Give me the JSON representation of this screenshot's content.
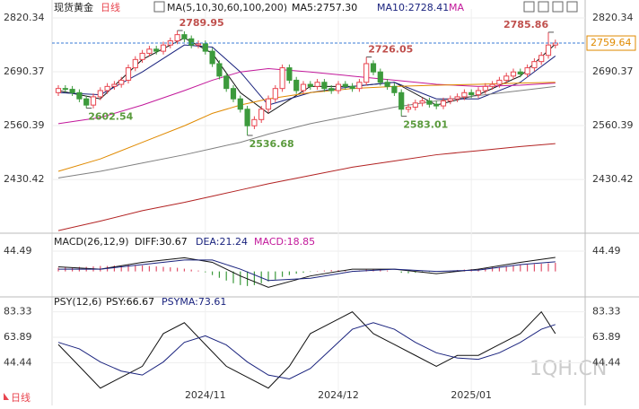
{
  "page": {
    "watermark": "1QH.CN"
  },
  "chart_data": [
    {
      "type": "candlestick",
      "title": "现货黄金",
      "period": "日线",
      "indicator": "MA(5,10,30,60,100,200)",
      "up_color": "#e8454f",
      "down_color": "#3c9a3c",
      "open": [
        2640,
        2650,
        2648,
        2640,
        2625,
        2610,
        2630,
        2645,
        2655,
        2660,
        2670,
        2700,
        2720,
        2735,
        2745,
        2740,
        2755,
        2765,
        2780,
        2770,
        2755,
        2758,
        2740,
        2710,
        2680,
        2650,
        2625,
        2600,
        2560,
        2575,
        2600,
        2625,
        2650,
        2700,
        2670,
        2645,
        2660,
        2655,
        2665,
        2650,
        2645,
        2660,
        2655,
        2650,
        2665,
        2710,
        2690,
        2665,
        2655,
        2640,
        2600,
        2605,
        2615,
        2620,
        2612,
        2608,
        2620,
        2625,
        2630,
        2640,
        2635,
        2645,
        2655,
        2660,
        2670,
        2680,
        2690,
        2685,
        2700,
        2715,
        2730,
        2755
      ],
      "high": [
        2658,
        2658,
        2656,
        2648,
        2633,
        2638,
        2653,
        2663,
        2668,
        2678,
        2708,
        2728,
        2743,
        2753,
        2753,
        2763,
        2773,
        2789.95,
        2788,
        2778,
        2766,
        2766,
        2748,
        2718,
        2688,
        2658,
        2633,
        2608,
        2583,
        2608,
        2633,
        2658,
        2708,
        2708,
        2678,
        2668,
        2668,
        2673,
        2673,
        2658,
        2668,
        2668,
        2663,
        2673,
        2726.05,
        2718,
        2698,
        2673,
        2663,
        2648,
        2613,
        2623,
        2628,
        2628,
        2620,
        2628,
        2633,
        2638,
        2648,
        2648,
        2653,
        2663,
        2668,
        2678,
        2688,
        2698,
        2698,
        2708,
        2723,
        2738,
        2785.86,
        2768
      ],
      "low": [
        2632,
        2640,
        2632,
        2617,
        2602.54,
        2602,
        2622,
        2637,
        2647,
        2652,
        2662,
        2692,
        2712,
        2727,
        2732,
        2732,
        2747,
        2757,
        2762,
        2747,
        2747,
        2732,
        2702,
        2672,
        2642,
        2617,
        2592,
        2536.68,
        2552,
        2567,
        2592,
        2617,
        2642,
        2662,
        2637,
        2637,
        2647,
        2647,
        2642,
        2637,
        2637,
        2647,
        2642,
        2642,
        2657,
        2682,
        2657,
        2647,
        2632,
        2583.01,
        2592,
        2597,
        2607,
        2604,
        2600,
        2600,
        2612,
        2617,
        2622,
        2627,
        2627,
        2637,
        2647,
        2652,
        2662,
        2672,
        2677,
        2677,
        2692,
        2707,
        2722,
        2747
      ],
      "close": [
        2650,
        2648,
        2640,
        2625,
        2610,
        2630,
        2645,
        2655,
        2660,
        2670,
        2700,
        2720,
        2735,
        2745,
        2740,
        2755,
        2765,
        2780,
        2770,
        2755,
        2758,
        2740,
        2710,
        2680,
        2650,
        2625,
        2600,
        2560,
        2575,
        2600,
        2625,
        2650,
        2700,
        2670,
        2645,
        2660,
        2655,
        2665,
        2650,
        2645,
        2660,
        2655,
        2650,
        2665,
        2710,
        2690,
        2665,
        2655,
        2640,
        2600,
        2605,
        2615,
        2620,
        2612,
        2608,
        2620,
        2625,
        2630,
        2640,
        2635,
        2645,
        2655,
        2660,
        2670,
        2680,
        2690,
        2685,
        2700,
        2715,
        2730,
        2755,
        2759.64
      ],
      "annotations": [
        {
          "x": 17,
          "y": 2789.95
        },
        {
          "x": 4,
          "y": 2602.54
        },
        {
          "x": 27,
          "y": 2536.68
        },
        {
          "x": 44,
          "y": 2726.05
        },
        {
          "x": 49,
          "y": 2583.01
        },
        {
          "x": 70,
          "y": 2785.86
        }
      ],
      "series": [
        {
          "name": "MA5:2757.30",
          "color": "#111111",
          "x": [
            0,
            6,
            12,
            18,
            22,
            26,
            30,
            36,
            42,
            48,
            54,
            60,
            66,
            71
          ],
          "values": [
            2645,
            2625,
            2720,
            2772,
            2735,
            2640,
            2590,
            2655,
            2655,
            2665,
            2610,
            2635,
            2680,
            2757.3
          ]
        },
        {
          "name": "MA10:2728.41",
          "color": "#1a237e",
          "x": [
            0,
            6,
            12,
            18,
            22,
            26,
            30,
            36,
            42,
            48,
            54,
            60,
            66,
            71
          ],
          "values": [
            2640,
            2635,
            2690,
            2755,
            2750,
            2690,
            2610,
            2640,
            2655,
            2665,
            2625,
            2625,
            2665,
            2728.41
          ]
        },
        {
          "name": "MA",
          "color": "#c2189a",
          "x": [
            0,
            6,
            12,
            18,
            22,
            26,
            30,
            36,
            42,
            48,
            54,
            60,
            66,
            71
          ],
          "values": [
            2565,
            2580,
            2610,
            2645,
            2670,
            2690,
            2698,
            2690,
            2680,
            2670,
            2660,
            2655,
            2658,
            2663
          ]
        },
        {
          "color": "#e08a00",
          "x": [
            0,
            6,
            12,
            18,
            22,
            26,
            30,
            36,
            42,
            48,
            54,
            60,
            66,
            71
          ],
          "values": [
            2450,
            2480,
            2520,
            2560,
            2590,
            2610,
            2625,
            2640,
            2650,
            2655,
            2658,
            2660,
            2663,
            2665
          ]
        },
        {
          "color": "#808080",
          "x": [
            0,
            6,
            12,
            18,
            22,
            26,
            30,
            36,
            42,
            48,
            54,
            60,
            66,
            71
          ],
          "values": [
            2434,
            2450,
            2470,
            2490,
            2505,
            2520,
            2540,
            2565,
            2585,
            2605,
            2620,
            2633,
            2645,
            2655
          ]
        },
        {
          "color": "#b22222",
          "x": [
            0,
            6,
            12,
            18,
            22,
            26,
            30,
            36,
            42,
            48,
            54,
            60,
            66,
            71
          ],
          "values": [
            2307,
            2330,
            2355,
            2375,
            2390,
            2405,
            2420,
            2440,
            2460,
            2475,
            2490,
            2500,
            2510,
            2517
          ]
        }
      ],
      "ylim": [
        2305,
        2842
      ],
      "yticks": [
        2820.34,
        2690.37,
        2560.39,
        2430.42
      ],
      "xticks": [
        {
          "value": 21,
          "label": "2024/11"
        },
        {
          "value": 40,
          "label": "2024/12"
        },
        {
          "value": 59,
          "label": "2025/01"
        }
      ]
    },
    {
      "type": "macd",
      "title": "MACD(26,12,9)",
      "histogram": {
        "name": "MACD:18.85",
        "up_color": "#e0506a",
        "down_color": "#3c9a3c",
        "values": [
          8,
          9,
          9,
          10,
          10,
          11,
          12,
          12,
          13,
          13,
          14,
          14,
          13,
          12,
          11,
          10,
          9,
          8,
          6,
          4,
          2,
          -2,
          -8,
          -14,
          -20,
          -26,
          -30,
          -32,
          -30,
          -26,
          -22,
          -18,
          -12,
          -8,
          -5,
          -3,
          -1,
          1,
          2,
          3,
          3,
          2,
          1,
          2,
          4,
          5,
          4,
          2,
          0,
          -3,
          -4,
          -3,
          -2,
          -1,
          0,
          1,
          2,
          3,
          4,
          5,
          6,
          8,
          9,
          10,
          11,
          12,
          14,
          15,
          16,
          17,
          18,
          18.85
        ]
      },
      "series": [
        {
          "name": "DIFF:30.67",
          "color": "#111111",
          "x": [
            0,
            6,
            12,
            18,
            22,
            26,
            30,
            36,
            42,
            48,
            54,
            60,
            66,
            71
          ],
          "values": [
            10,
            5,
            20,
            30,
            20,
            -10,
            -35,
            -10,
            5,
            5,
            -5,
            5,
            20,
            30.67
          ]
        },
        {
          "name": "DEA:21.24",
          "color": "#1a237e",
          "x": [
            0,
            6,
            12,
            18,
            22,
            26,
            30,
            36,
            42,
            48,
            54,
            60,
            66,
            71
          ],
          "values": [
            5,
            5,
            15,
            25,
            25,
            5,
            -20,
            -15,
            0,
            5,
            0,
            3,
            15,
            21.24
          ]
        }
      ],
      "ylim": [
        -50,
        80
      ],
      "yticks": [
        44.49
      ]
    },
    {
      "type": "line",
      "title": "PSY(12,6)",
      "series": [
        {
          "name": "PSY:66.67",
          "color": "#111111",
          "x": [
            0,
            3,
            6,
            9,
            12,
            15,
            18,
            21,
            24,
            27,
            30,
            33,
            36,
            39,
            42,
            45,
            48,
            51,
            54,
            57,
            60,
            63,
            66,
            69,
            71
          ],
          "values": [
            58.33,
            41.67,
            25,
            33.33,
            41.67,
            66.67,
            75,
            58.33,
            41.67,
            33.33,
            25,
            41.67,
            66.67,
            75,
            83.33,
            66.67,
            58.33,
            50,
            41.67,
            50,
            50,
            58.33,
            66.67,
            83.33,
            66.67
          ]
        },
        {
          "name": "PSYMA:73.61",
          "color": "#1a237e",
          "x": [
            0,
            3,
            6,
            9,
            12,
            15,
            18,
            21,
            24,
            27,
            30,
            33,
            36,
            39,
            42,
            45,
            48,
            51,
            54,
            57,
            60,
            63,
            66,
            69,
            71
          ],
          "values": [
            60,
            55,
            45,
            38,
            35,
            45,
            60,
            65,
            58,
            45,
            35,
            32,
            40,
            55,
            70,
            75,
            70,
            60,
            52,
            48,
            47,
            52,
            60,
            70,
            73.61
          ]
        }
      ],
      "ylim": [
        20,
        92
      ],
      "yticks": [
        83.33,
        63.89,
        44.44
      ]
    }
  ]
}
